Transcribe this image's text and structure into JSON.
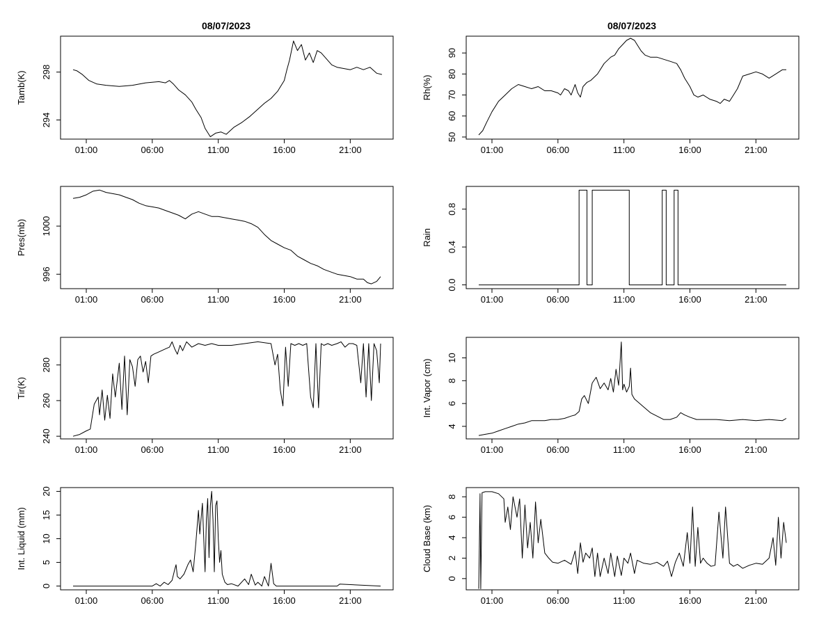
{
  "figure": {
    "left_title": "08/07/2023",
    "right_title": "08/07/2023",
    "xtick_labels": [
      "01:00",
      "06:00",
      "11:00",
      "16:00",
      "21:00"
    ]
  },
  "chart_data": [
    {
      "id": "tamb",
      "type": "line",
      "ylabel": "Tamb(K)",
      "ylim": [
        292.4,
        301.0
      ],
      "yticks": [
        294,
        298
      ],
      "yticklabels": [
        "294",
        "298"
      ],
      "x": [
        0.0,
        0.3,
        0.7,
        1.2,
        1.8,
        2.5,
        3.5,
        4.5,
        5.5,
        6.5,
        7.0,
        7.3,
        7.6,
        8.0,
        8.5,
        9.0,
        9.3,
        9.7,
        10.0,
        10.4,
        10.8,
        11.2,
        11.6,
        12.2,
        12.8,
        13.4,
        14.0,
        14.5,
        15.0,
        15.5,
        16.0,
        16.2,
        16.4,
        16.7,
        17.0,
        17.3,
        17.6,
        17.9,
        18.2,
        18.5,
        18.8,
        19.2,
        19.6,
        20.0,
        20.5,
        21.0,
        21.5,
        22.0,
        22.5,
        23.0,
        23.4
      ],
      "y": [
        298.2,
        298.1,
        297.8,
        297.3,
        297.0,
        296.9,
        296.8,
        296.9,
        297.1,
        297.2,
        297.1,
        297.3,
        297.0,
        296.5,
        296.1,
        295.5,
        294.9,
        294.2,
        293.3,
        292.6,
        292.9,
        293.0,
        292.8,
        293.4,
        293.8,
        294.3,
        294.9,
        295.4,
        295.8,
        296.4,
        297.3,
        298.2,
        299.0,
        300.6,
        299.8,
        300.3,
        299.0,
        299.6,
        298.8,
        299.8,
        299.6,
        299.1,
        298.6,
        298.4,
        298.3,
        298.2,
        298.4,
        298.2,
        298.4,
        297.9,
        297.8
      ]
    },
    {
      "id": "rh",
      "type": "line",
      "ylabel": "Rh(%)",
      "ylim": [
        49.0,
        98.0
      ],
      "yticks": [
        50,
        60,
        70,
        80,
        90
      ],
      "yticklabels": [
        "50",
        "60",
        "70",
        "80",
        "90"
      ],
      "x": [
        0.0,
        0.3,
        0.6,
        1.0,
        1.5,
        2.0,
        2.5,
        3.0,
        3.5,
        4.0,
        4.5,
        5.0,
        5.5,
        6.0,
        6.2,
        6.5,
        6.8,
        7.0,
        7.3,
        7.5,
        7.7,
        7.9,
        8.2,
        8.5,
        9.0,
        9.5,
        10.0,
        10.3,
        10.6,
        10.9,
        11.2,
        11.5,
        11.8,
        12.0,
        12.3,
        12.6,
        13.0,
        13.5,
        14.0,
        14.5,
        15.0,
        15.3,
        15.6,
        16.0,
        16.3,
        16.6,
        17.0,
        17.5,
        18.0,
        18.3,
        18.6,
        19.0,
        19.3,
        19.6,
        20.0,
        20.5,
        21.0,
        21.5,
        22.0,
        22.5,
        23.0,
        23.3
      ],
      "y": [
        51,
        53,
        57,
        62,
        67,
        70,
        73,
        75,
        74,
        73,
        74,
        72,
        72,
        71,
        70,
        73,
        72,
        70,
        75,
        71,
        69,
        74,
        76,
        77,
        80,
        85,
        88,
        89,
        92,
        94,
        96,
        97,
        96,
        94,
        91,
        89,
        88,
        88,
        87,
        86,
        85,
        82,
        78,
        74,
        70,
        69,
        70,
        68,
        67,
        66,
        68,
        67,
        70,
        73,
        79,
        80,
        81,
        80,
        78,
        80,
        82,
        82
      ]
    },
    {
      "id": "pres",
      "type": "line",
      "ylabel": "Pres(mb)",
      "ylim": [
        994.8,
        1003.3
      ],
      "yticks": [
        996,
        1000
      ],
      "yticklabels": [
        "996",
        "1000"
      ],
      "x": [
        0.0,
        0.5,
        1.0,
        1.5,
        2.0,
        2.5,
        3.0,
        3.5,
        4.0,
        4.5,
        5.0,
        5.5,
        6.0,
        6.5,
        7.0,
        7.5,
        8.0,
        8.5,
        9.0,
        9.5,
        10.0,
        10.5,
        11.0,
        11.5,
        12.0,
        12.5,
        13.0,
        13.5,
        14.0,
        14.5,
        15.0,
        15.5,
        16.0,
        16.5,
        17.0,
        17.5,
        18.0,
        18.5,
        19.0,
        19.5,
        20.0,
        20.5,
        21.0,
        21.5,
        22.0,
        22.3,
        22.6,
        23.0,
        23.3
      ],
      "y": [
        1002.3,
        1002.4,
        1002.6,
        1002.9,
        1003.0,
        1002.8,
        1002.7,
        1002.6,
        1002.4,
        1002.2,
        1001.9,
        1001.7,
        1001.6,
        1001.5,
        1001.3,
        1001.1,
        1000.9,
        1000.6,
        1001.0,
        1001.2,
        1001.0,
        1000.8,
        1000.8,
        1000.7,
        1000.6,
        1000.5,
        1000.4,
        1000.2,
        999.9,
        999.3,
        998.8,
        998.5,
        998.2,
        998.0,
        997.5,
        997.2,
        996.9,
        996.7,
        996.4,
        996.2,
        996.0,
        995.9,
        995.8,
        995.6,
        995.6,
        995.3,
        995.2,
        995.4,
        995.8
      ]
    },
    {
      "id": "rain",
      "type": "step",
      "ylabel": "Rain",
      "ylim": [
        -0.04,
        1.04
      ],
      "yticks": [
        0.0,
        0.4,
        0.8
      ],
      "yticklabels": [
        "0.0",
        "0.4",
        "0.8"
      ],
      "x": [
        0.0,
        7.6,
        7.6,
        8.2,
        8.2,
        8.6,
        8.6,
        11.4,
        11.4,
        13.9,
        13.9,
        14.2,
        14.2,
        14.8,
        14.8,
        15.1,
        15.1,
        23.3
      ],
      "y": [
        0,
        0,
        1,
        1,
        0,
        0,
        1,
        1,
        0,
        0,
        1,
        1,
        0,
        0,
        1,
        1,
        0,
        0
      ]
    },
    {
      "id": "tir",
      "type": "line",
      "ylabel": "Tir(K)",
      "ylim": [
        238.5,
        295.5
      ],
      "yticks": [
        240,
        260,
        280
      ],
      "yticklabels": [
        "240",
        "260",
        "280"
      ],
      "x": [
        0.0,
        0.5,
        1.0,
        1.3,
        1.6,
        1.9,
        2.0,
        2.2,
        2.4,
        2.6,
        2.8,
        3.0,
        3.2,
        3.5,
        3.7,
        3.9,
        4.1,
        4.3,
        4.5,
        4.7,
        4.9,
        5.1,
        5.3,
        5.5,
        5.7,
        5.9,
        6.1,
        6.4,
        6.7,
        7.0,
        7.3,
        7.5,
        7.7,
        7.9,
        8.1,
        8.3,
        8.6,
        9.0,
        9.5,
        10.0,
        10.5,
        11.0,
        12.0,
        13.0,
        14.0,
        15.0,
        15.3,
        15.5,
        15.7,
        15.9,
        16.1,
        16.3,
        16.5,
        16.8,
        17.1,
        17.4,
        17.7,
        18.0,
        18.2,
        18.4,
        18.6,
        18.8,
        19.0,
        19.3,
        19.6,
        20.0,
        20.3,
        20.6,
        20.9,
        21.2,
        21.5,
        21.8,
        22.0,
        22.2,
        22.4,
        22.6,
        22.8,
        23.0,
        23.2,
        23.3
      ],
      "y": [
        240,
        241,
        243,
        244,
        258,
        262,
        252,
        266,
        249,
        263,
        250,
        275,
        262,
        281,
        255,
        285,
        252,
        283,
        279,
        268,
        283,
        285,
        276,
        282,
        270,
        285,
        286,
        287,
        288,
        289,
        290,
        293,
        289,
        286,
        291,
        288,
        293,
        290,
        292,
        291,
        292,
        291,
        291,
        292,
        293,
        292,
        280,
        286,
        266,
        257,
        290,
        268,
        292,
        291,
        292,
        291,
        292,
        262,
        256,
        292,
        256,
        292,
        291,
        292,
        291,
        292,
        293,
        290,
        292,
        292,
        291,
        270,
        292,
        262,
        292,
        260,
        292,
        288,
        270,
        292
      ]
    },
    {
      "id": "vapor",
      "type": "line",
      "ylabel": "Int. Vapor (cm)",
      "ylim": [
        2.9,
        11.8
      ],
      "yticks": [
        4,
        6,
        8,
        10
      ],
      "yticklabels": [
        "4",
        "6",
        "8",
        "10"
      ],
      "x": [
        0.0,
        0.5,
        1.0,
        1.5,
        2.0,
        2.5,
        3.0,
        3.5,
        4.0,
        4.5,
        5.0,
        5.5,
        6.0,
        6.5,
        7.0,
        7.3,
        7.6,
        7.8,
        8.0,
        8.3,
        8.6,
        8.9,
        9.2,
        9.5,
        9.8,
        10.0,
        10.2,
        10.4,
        10.6,
        10.8,
        10.9,
        11.0,
        11.2,
        11.4,
        11.5,
        11.6,
        11.8,
        12.0,
        12.5,
        13.0,
        13.5,
        14.0,
        14.5,
        15.0,
        15.3,
        15.6,
        16.0,
        16.5,
        17.0,
        18.0,
        19.0,
        20.0,
        21.0,
        22.0,
        23.0,
        23.3
      ],
      "y": [
        3.2,
        3.3,
        3.4,
        3.6,
        3.8,
        4.0,
        4.2,
        4.3,
        4.5,
        4.5,
        4.5,
        4.6,
        4.6,
        4.7,
        4.9,
        5.0,
        5.3,
        6.4,
        6.7,
        6.0,
        7.8,
        8.3,
        7.3,
        7.8,
        7.2,
        8.2,
        7.0,
        9.0,
        7.6,
        11.4,
        7.2,
        7.7,
        7.0,
        7.5,
        9.1,
        6.8,
        6.4,
        6.2,
        5.7,
        5.2,
        4.9,
        4.6,
        4.6,
        4.8,
        5.2,
        5.0,
        4.8,
        4.6,
        4.6,
        4.6,
        4.5,
        4.6,
        4.5,
        4.6,
        4.5,
        4.7
      ]
    },
    {
      "id": "liquid",
      "type": "line",
      "ylabel": "Int. Liquid (mm)",
      "ylim": [
        -0.8,
        20.8
      ],
      "yticks": [
        0,
        5,
        10,
        15,
        20
      ],
      "yticklabels": [
        "0",
        "5",
        "10",
        "15",
        "20"
      ],
      "x": [
        0.0,
        6.0,
        6.3,
        6.6,
        6.9,
        7.2,
        7.5,
        7.7,
        7.8,
        7.9,
        8.1,
        8.4,
        8.7,
        8.9,
        9.1,
        9.3,
        9.5,
        9.6,
        9.8,
        9.9,
        10.0,
        10.1,
        10.2,
        10.3,
        10.4,
        10.5,
        10.6,
        10.7,
        10.8,
        10.9,
        11.0,
        11.1,
        11.2,
        11.3,
        11.5,
        11.7,
        12.0,
        12.5,
        13.0,
        13.3,
        13.5,
        13.8,
        14.0,
        14.3,
        14.5,
        14.8,
        15.0,
        15.2,
        15.4,
        16.0,
        20.0,
        20.2,
        23.3
      ],
      "y": [
        0,
        0,
        0.5,
        0,
        0.8,
        0.3,
        1.2,
        3.5,
        4.5,
        2.0,
        1.5,
        2.5,
        4.5,
        5.5,
        3.0,
        9.0,
        16.0,
        11.0,
        17.5,
        10.0,
        3.0,
        14.0,
        18.5,
        6.0,
        17.0,
        20.0,
        14.0,
        3.0,
        17.0,
        18.0,
        10.0,
        5.0,
        7.5,
        2.5,
        0.8,
        0.3,
        0.5,
        0,
        1.5,
        0.3,
        2.5,
        0.2,
        0.8,
        0,
        2.0,
        0,
        4.8,
        0.5,
        0,
        0,
        0,
        0.4,
        0
      ]
    },
    {
      "id": "cloudbase",
      "type": "line",
      "ylabel": "Cloud Base (km)",
      "ylim": [
        -1.1,
        8.9
      ],
      "yticks": [
        0,
        2,
        4,
        6,
        8
      ],
      "yticklabels": [
        "0",
        "2",
        "4",
        "6",
        "8"
      ],
      "x": [
        0.0,
        0.05,
        0.1,
        0.15,
        0.25,
        0.5,
        1.0,
        1.5,
        1.9,
        2.0,
        2.2,
        2.4,
        2.6,
        2.9,
        3.1,
        3.3,
        3.5,
        3.7,
        3.9,
        4.1,
        4.3,
        4.5,
        4.7,
        5.0,
        5.3,
        5.6,
        6.0,
        6.5,
        7.0,
        7.3,
        7.5,
        7.7,
        7.9,
        8.1,
        8.4,
        8.6,
        8.8,
        9.0,
        9.2,
        9.5,
        9.8,
        10.0,
        10.3,
        10.5,
        10.8,
        11.0,
        11.3,
        11.5,
        11.8,
        12.0,
        12.5,
        13.0,
        13.5,
        14.0,
        14.3,
        14.6,
        14.9,
        15.2,
        15.5,
        15.8,
        16.0,
        16.2,
        16.4,
        16.6,
        16.8,
        17.0,
        17.3,
        17.6,
        17.9,
        18.2,
        18.5,
        18.7,
        19.0,
        19.3,
        19.6,
        20.0,
        20.5,
        21.0,
        21.5,
        22.0,
        22.3,
        22.5,
        22.7,
        22.9,
        23.1,
        23.3
      ],
      "y": [
        -1.0,
        3.8,
        8.3,
        -1.0,
        8.4,
        8.5,
        8.5,
        8.3,
        7.8,
        5.5,
        7.0,
        4.8,
        8.0,
        6.0,
        7.8,
        2.0,
        7.2,
        3.0,
        5.5,
        2.0,
        7.5,
        3.5,
        5.8,
        2.5,
        2.0,
        1.6,
        1.5,
        1.8,
        1.4,
        2.7,
        0.5,
        3.5,
        1.6,
        2.5,
        2.0,
        3.0,
        0.2,
        2.5,
        0.2,
        2.0,
        0.5,
        2.5,
        0.2,
        2.2,
        0.3,
        2.0,
        1.5,
        2.5,
        0.5,
        1.8,
        1.5,
        1.4,
        1.6,
        1.2,
        1.7,
        0.2,
        1.6,
        2.5,
        1.2,
        4.5,
        1.5,
        7.0,
        1.2,
        5.0,
        1.5,
        2.0,
        1.5,
        1.2,
        1.3,
        6.5,
        2.0,
        7.0,
        1.5,
        1.2,
        1.4,
        1.0,
        1.3,
        1.5,
        1.4,
        2.0,
        4.0,
        1.3,
        6.0,
        2.0,
        5.5,
        3.5
      ]
    }
  ]
}
